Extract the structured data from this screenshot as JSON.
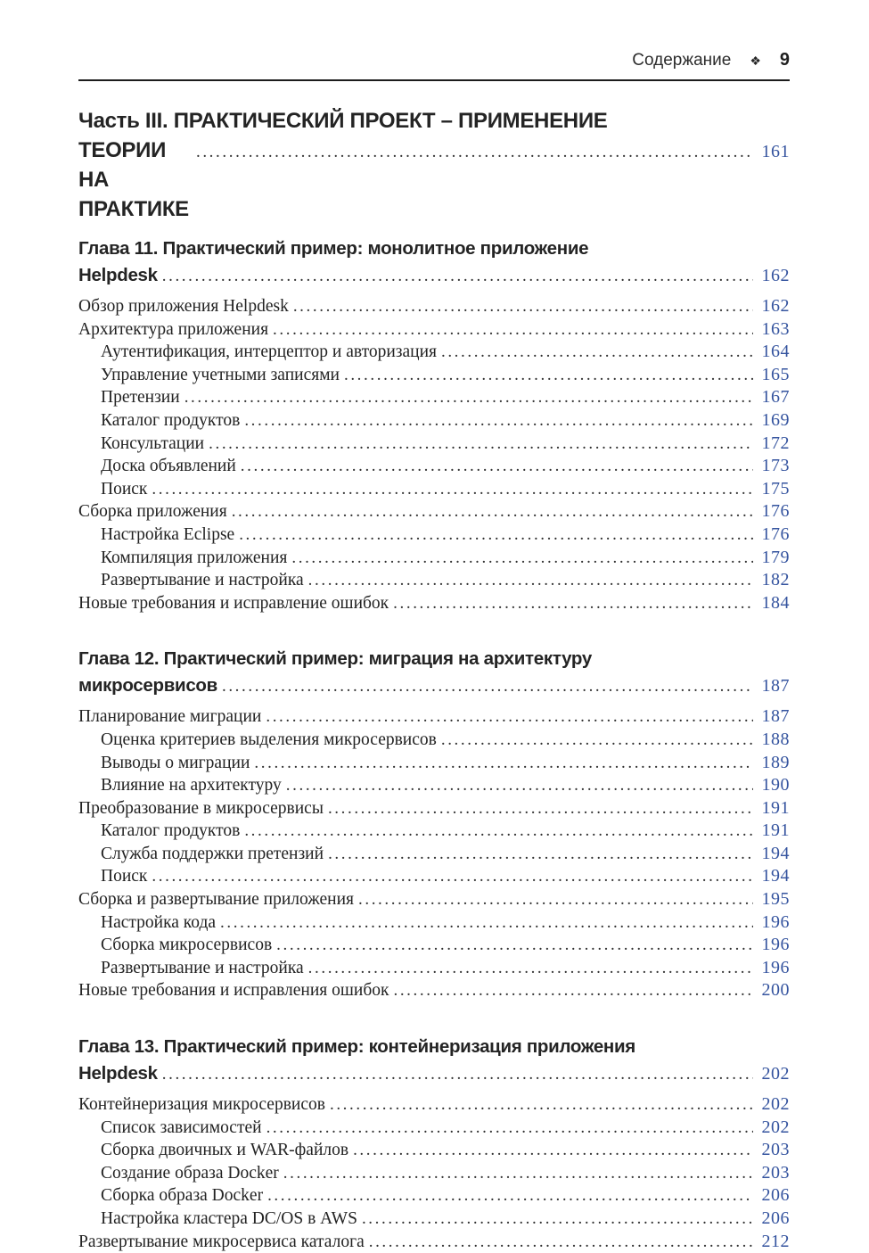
{
  "header": {
    "title": "Содержание",
    "ornament": "❖",
    "page_number": "9"
  },
  "colors": {
    "accent": "#35549f",
    "text": "#232323",
    "rule": "#1c1c1c"
  },
  "toc": {
    "sections": [
      {
        "kind": "part",
        "lines": [
          "Часть III. ПРАКТИЧЕСКИЙ ПРОЕКТ – ПРИМЕНЕНИЕ",
          "ТЕОРИИ НА ПРАКТИКЕ"
        ],
        "page": "161",
        "entries": []
      },
      {
        "kind": "chapter",
        "lines": [
          "Глава 11. Практический пример: монолитное приложение",
          "Helpdesk"
        ],
        "page": "162",
        "entries": [
          {
            "label": "Обзор приложения Helpdesk",
            "page": "162",
            "level": 0
          },
          {
            "label": "Архитектура приложения",
            "page": "163",
            "level": 0
          },
          {
            "label": "Аутентификация, интерцептор и авторизация",
            "page": "164",
            "level": 1
          },
          {
            "label": "Управление учетными записями",
            "page": "165",
            "level": 1
          },
          {
            "label": "Претензии",
            "page": "167",
            "level": 1
          },
          {
            "label": "Каталог продуктов",
            "page": "169",
            "level": 1
          },
          {
            "label": "Консультации",
            "page": "172",
            "level": 1
          },
          {
            "label": "Доска объявлений",
            "page": "173",
            "level": 1
          },
          {
            "label": "Поиск",
            "page": "175",
            "level": 1
          },
          {
            "label": "Сборка приложения",
            "page": "176",
            "level": 0
          },
          {
            "label": "Настройка Eclipse",
            "page": "176",
            "level": 1
          },
          {
            "label": "Компиляция приложения",
            "page": "179",
            "level": 1
          },
          {
            "label": "Развертывание и настройка",
            "page": "182",
            "level": 1
          },
          {
            "label": "Новые требования и исправление ошибок",
            "page": "184",
            "level": 0
          }
        ]
      },
      {
        "kind": "chapter",
        "lines": [
          "Глава 12. Практический пример: миграция на архитектуру",
          "микросервисов"
        ],
        "page": "187",
        "entries": [
          {
            "label": "Планирование миграции",
            "page": "187",
            "level": 0
          },
          {
            "label": "Оценка критериев выделения микросервисов",
            "page": "188",
            "level": 1
          },
          {
            "label": "Выводы о миграции",
            "page": "189",
            "level": 1
          },
          {
            "label": "Влияние на архитектуру",
            "page": "190",
            "level": 1
          },
          {
            "label": "Преобразование в микросервисы",
            "page": "191",
            "level": 0
          },
          {
            "label": "Каталог продуктов",
            "page": "191",
            "level": 1
          },
          {
            "label": "Служба поддержки претензий",
            "page": "194",
            "level": 1
          },
          {
            "label": "Поиск",
            "page": "194",
            "level": 1
          },
          {
            "label": "Сборка и развертывание приложения",
            "page": "195",
            "level": 0
          },
          {
            "label": "Настройка кода",
            "page": "196",
            "level": 1
          },
          {
            "label": "Сборка микросервисов",
            "page": "196",
            "level": 1
          },
          {
            "label": "Развертывание и настройка",
            "page": "196",
            "level": 1
          },
          {
            "label": "Новые требования и исправления ошибок",
            "page": "200",
            "level": 0
          }
        ]
      },
      {
        "kind": "chapter",
        "lines": [
          "Глава 13. Практический пример: контейнеризация приложения",
          "Helpdesk"
        ],
        "page": "202",
        "entries": [
          {
            "label": "Контейнеризация микросервисов",
            "page": "202",
            "level": 0
          },
          {
            "label": "Список зависимостей",
            "page": "202",
            "level": 1
          },
          {
            "label": "Сборка двоичных и WAR-файлов",
            "page": "203",
            "level": 1
          },
          {
            "label": "Создание образа Docker",
            "page": "203",
            "level": 1
          },
          {
            "label": "Сборка образа Docker",
            "page": "206",
            "level": 1
          },
          {
            "label": "Настройка кластера DC/OS в AWS",
            "page": "206",
            "level": 1
          },
          {
            "label": "Развертывание микросервиса каталога",
            "page": "212",
            "level": 0
          }
        ]
      }
    ]
  }
}
